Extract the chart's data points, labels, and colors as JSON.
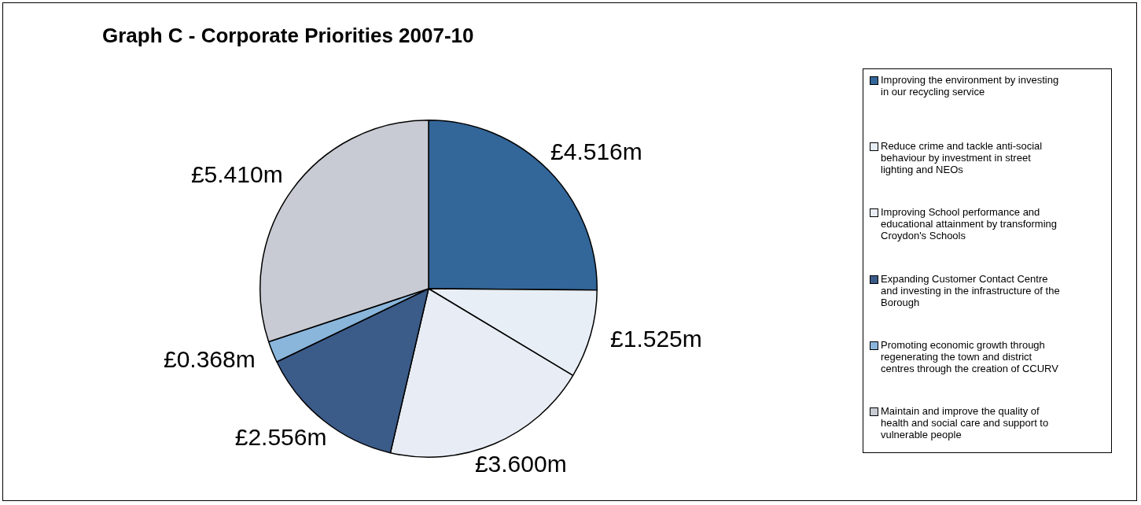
{
  "chart_data": {
    "type": "pie",
    "title": "Graph C - Corporate Priorities 2007-10",
    "categories": [
      "Improving the environment by investing in our recycling service",
      "Reduce crime and tackle anti-social behaviour by investment in street lighting and NEOs",
      "Improving School performance and educational attainment by transforming Croydon's Schools",
      "Expanding Customer Contact Centre and investing in the infrastructure of the Borough",
      "Promoting economic growth through regenerating the town and district centres through the creation of CCURV",
      "Maintain and improve the quality of health and social care and support to vulnerable people"
    ],
    "values": [
      4.516,
      1.525,
      3.6,
      2.556,
      0.368,
      5.41
    ],
    "value_labels": [
      "£4.516m",
      "£1.525m",
      "£3.600m",
      "£2.556m",
      "£0.368m",
      "£5.410m"
    ],
    "colors": [
      "#336699",
      "#e8eef6",
      "#e8edf5",
      "#3b5b89",
      "#8ab6dc",
      "#c8cbd3"
    ],
    "legend": "right"
  }
}
